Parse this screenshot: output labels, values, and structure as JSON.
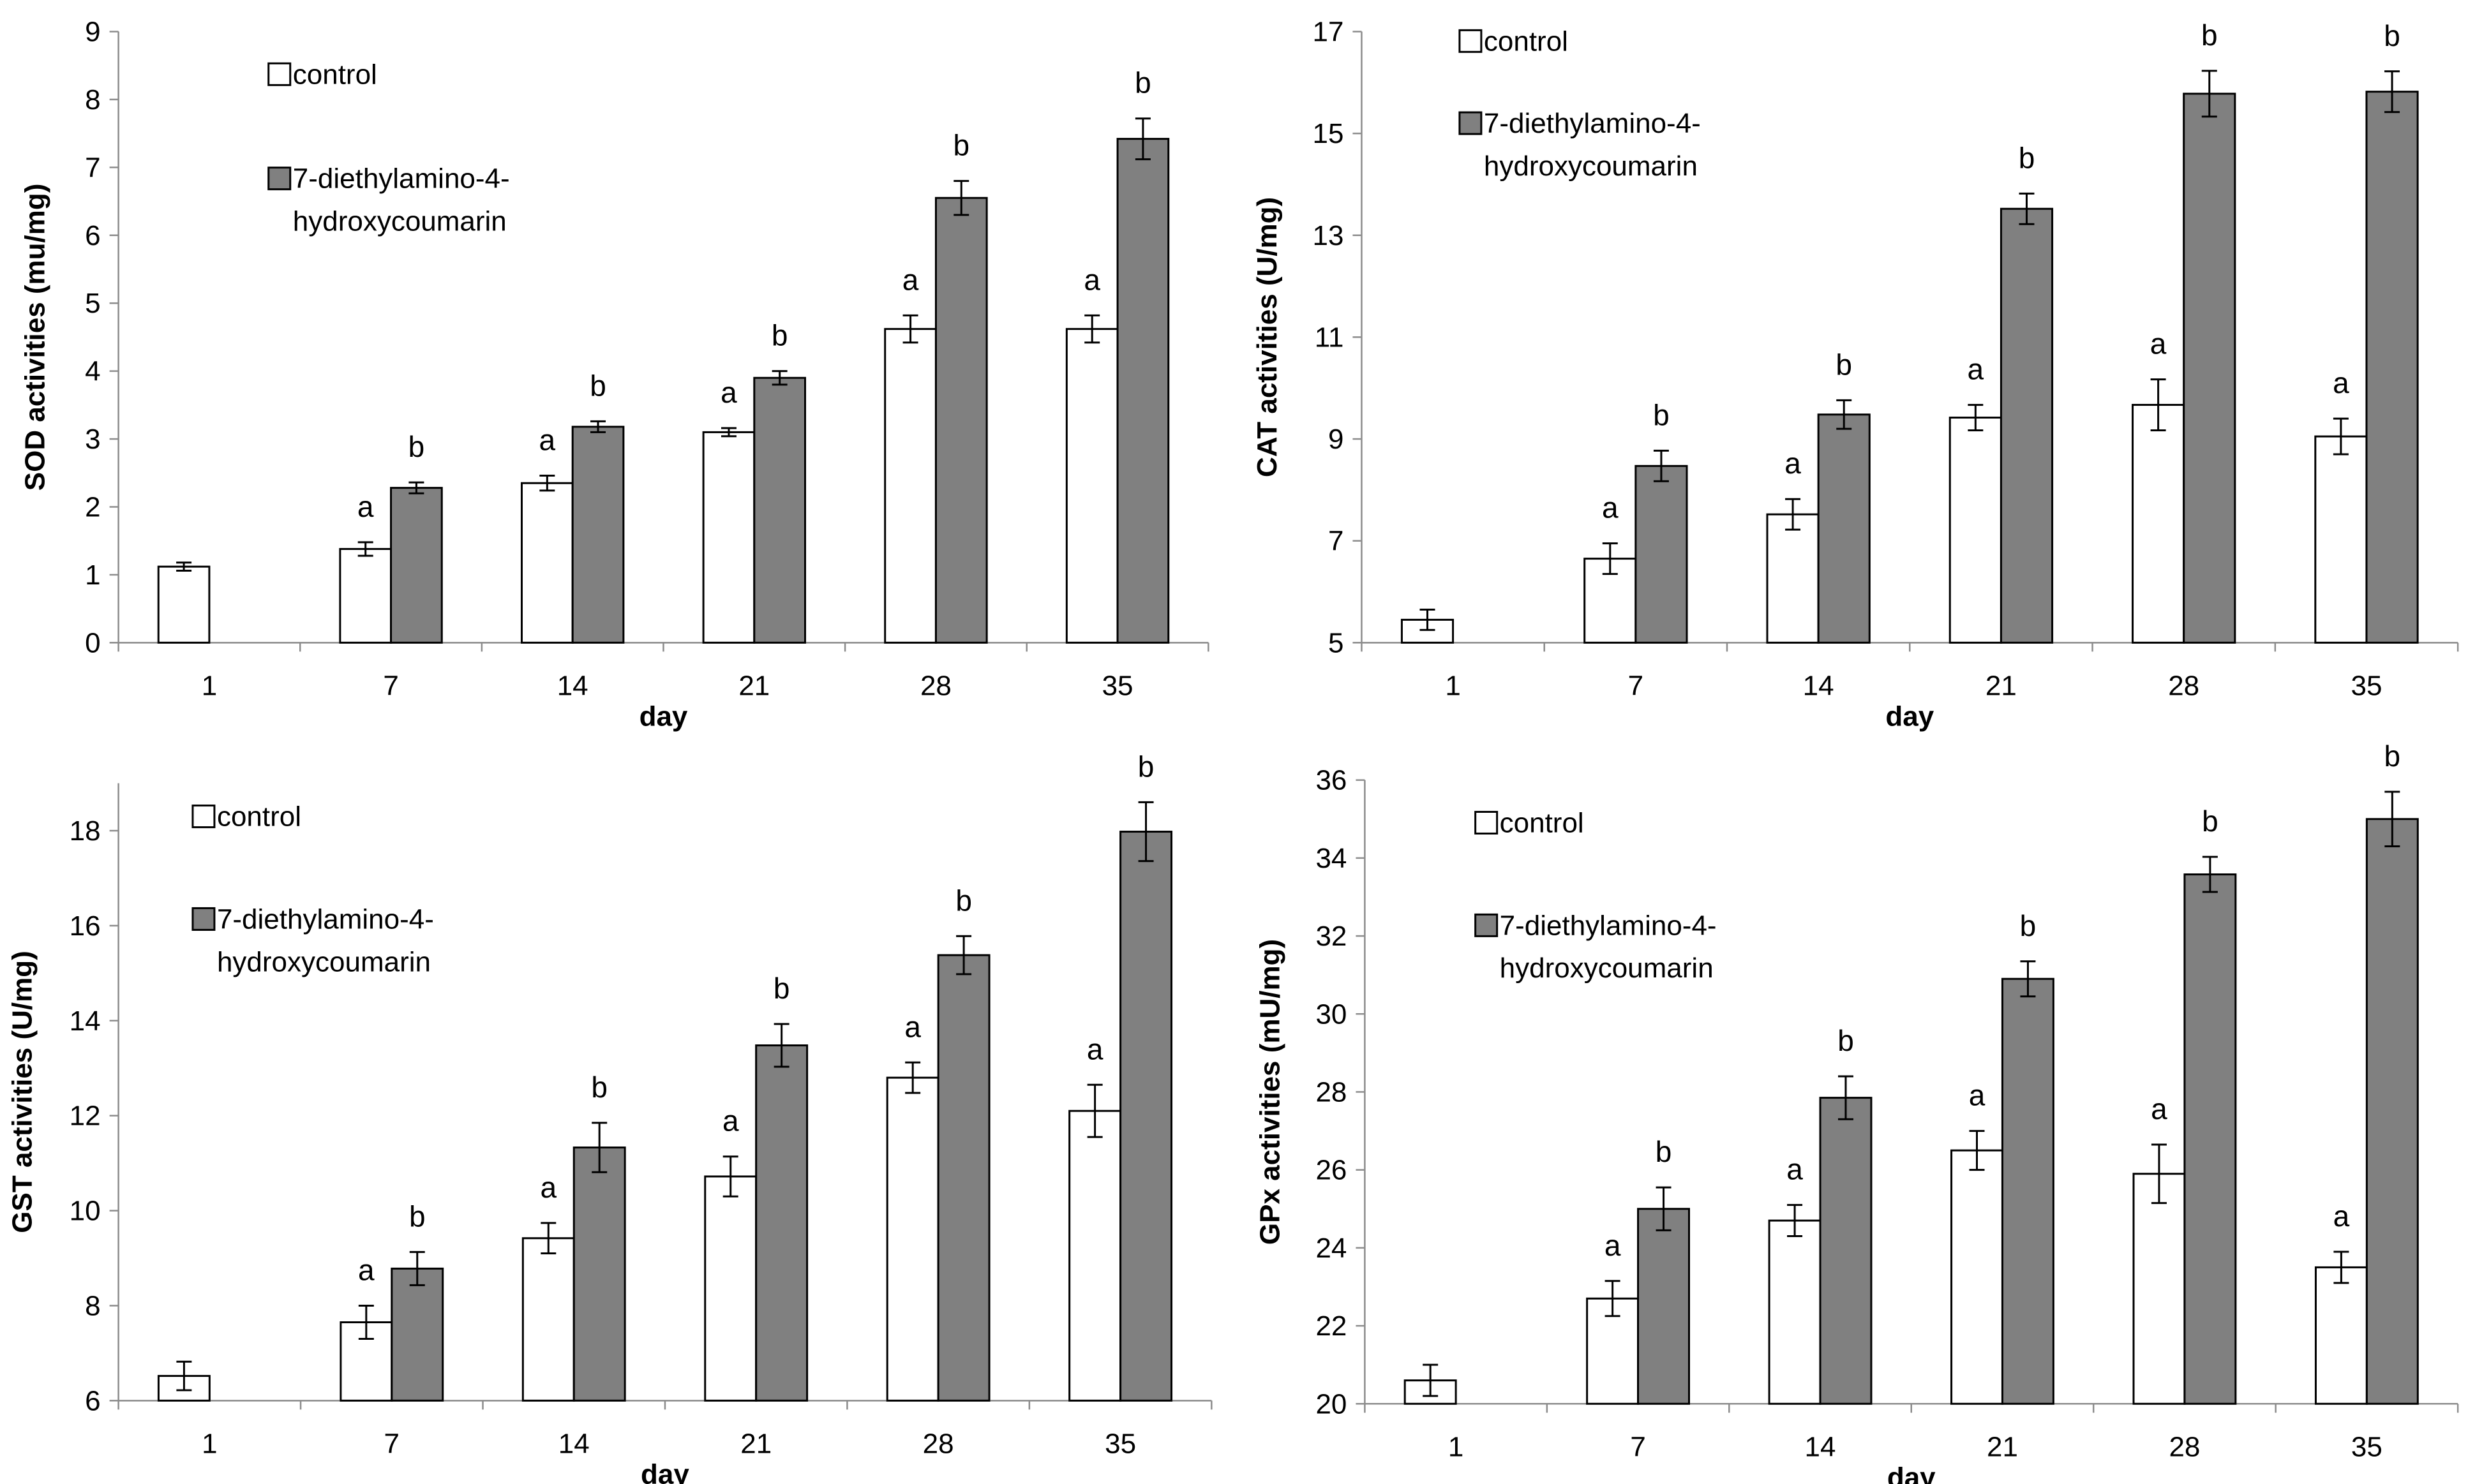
{
  "chart_data": [
    {
      "type": "bar",
      "categories": [
        "1",
        "7",
        "14",
        "21",
        "28",
        "35"
      ],
      "xlabel": "day",
      "ylabel": "SOD activities (mu/mg)",
      "ylim": [
        0,
        9
      ],
      "yticks": [
        0,
        1,
        2,
        3,
        4,
        5,
        6,
        7,
        8,
        9
      ],
      "legend_position": "top-left",
      "series": [
        {
          "name": "control",
          "color": "#ffffff",
          "values": [
            1.12,
            1.38,
            2.35,
            3.1,
            4.62,
            4.62
          ],
          "errors": [
            0.06,
            0.1,
            0.11,
            0.06,
            0.2,
            0.2
          ],
          "labels": [
            "",
            "a",
            "a",
            "a",
            "a",
            "a"
          ]
        },
        {
          "name": "7-diethylamino-4-hydroxycoumarin",
          "color": "#808080",
          "values": [
            null,
            2.28,
            3.18,
            3.9,
            6.55,
            7.42
          ],
          "errors": [
            null,
            0.08,
            0.08,
            0.1,
            0.25,
            0.3
          ],
          "labels": [
            "",
            "b",
            "b",
            "b",
            "b",
            "b"
          ]
        }
      ]
    },
    {
      "type": "bar",
      "categories": [
        "1",
        "7",
        "14",
        "21",
        "28",
        "35"
      ],
      "xlabel": "day",
      "ylabel": "CAT activities (U/mg)",
      "ylim": [
        5,
        17
      ],
      "yticks": [
        5,
        7,
        9,
        11,
        13,
        15,
        17
      ],
      "legend_position": "top-left",
      "series": [
        {
          "name": "control",
          "color": "#ffffff",
          "values": [
            5.45,
            6.65,
            7.52,
            9.42,
            9.67,
            9.05
          ],
          "errors": [
            0.2,
            0.3,
            0.3,
            0.25,
            0.5,
            0.35
          ],
          "labels": [
            "",
            "a",
            "a",
            "a",
            "a",
            "a"
          ]
        },
        {
          "name": "7-diethylamino-4-hydroxycoumarin",
          "color": "#808080",
          "values": [
            null,
            8.47,
            9.48,
            13.52,
            15.78,
            15.82
          ],
          "errors": [
            null,
            0.3,
            0.28,
            0.3,
            0.45,
            0.4
          ],
          "labels": [
            "",
            "b",
            "b",
            "b",
            "b",
            "b"
          ]
        }
      ]
    },
    {
      "type": "bar",
      "categories": [
        "1",
        "7",
        "14",
        "21",
        "28",
        "35"
      ],
      "xlabel": "day",
      "ylabel": "GST activities (U/mg)",
      "ylim": [
        6,
        19
      ],
      "yticks": [
        6,
        8,
        10,
        12,
        14,
        16,
        18
      ],
      "legend_position": "top-left",
      "series": [
        {
          "name": "control",
          "color": "#ffffff",
          "values": [
            6.52,
            7.65,
            9.42,
            10.72,
            12.8,
            12.1
          ],
          "errors": [
            0.3,
            0.35,
            0.32,
            0.42,
            0.32,
            0.55
          ],
          "labels": [
            "",
            "a",
            "a",
            "a",
            "a",
            "a"
          ]
        },
        {
          "name": "7-diethylamino-4-hydroxycoumarin",
          "color": "#808080",
          "values": [
            null,
            8.78,
            11.33,
            13.48,
            15.38,
            17.98
          ],
          "errors": [
            null,
            0.35,
            0.52,
            0.45,
            0.4,
            0.62
          ],
          "labels": [
            "",
            "b",
            "b",
            "b",
            "b",
            "b"
          ]
        }
      ]
    },
    {
      "type": "bar",
      "categories": [
        "1",
        "7",
        "14",
        "21",
        "28",
        "35"
      ],
      "xlabel": "day",
      "ylabel": "GPx activities (mU/mg)",
      "ylim": [
        20,
        36
      ],
      "yticks": [
        20,
        22,
        24,
        26,
        28,
        30,
        32,
        34,
        36
      ],
      "legend_position": "top-left",
      "series": [
        {
          "name": "control",
          "color": "#ffffff",
          "values": [
            20.6,
            22.7,
            24.7,
            26.5,
            25.9,
            23.5
          ],
          "errors": [
            0.4,
            0.45,
            0.4,
            0.5,
            0.75,
            0.4
          ],
          "labels": [
            "",
            "a",
            "a",
            "a",
            "a",
            "a"
          ]
        },
        {
          "name": "7-diethylamino-4-hydroxycoumarin",
          "color": "#808080",
          "values": [
            null,
            25.0,
            27.85,
            30.9,
            33.58,
            35.0
          ],
          "errors": [
            null,
            0.55,
            0.55,
            0.45,
            0.45,
            0.7
          ],
          "labels": [
            "",
            "b",
            "b",
            "b",
            "b",
            "b"
          ]
        }
      ]
    }
  ]
}
